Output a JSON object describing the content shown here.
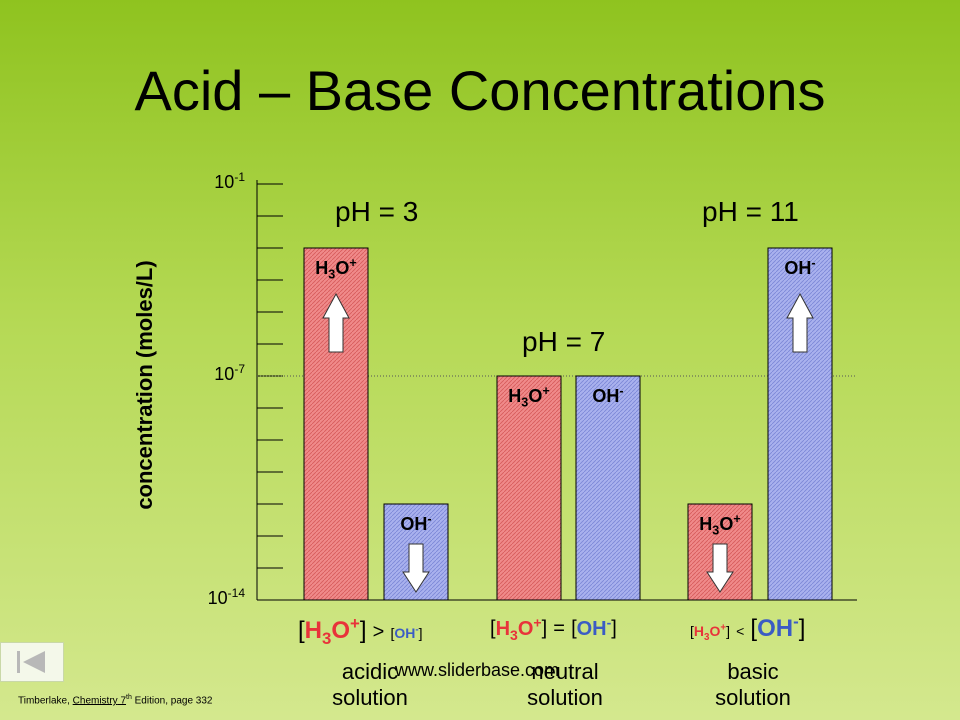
{
  "title": "Acid – Base Concentrations",
  "watermark": "www.sliderbase.com",
  "citation": {
    "prefix": "Timberlake, ",
    "book": "Chemistry",
    "edition": " 7",
    "sup": "th",
    "suffix": " Edition, page 332"
  },
  "chart_data": {
    "type": "bar",
    "ylabel": "concentration (moles/L)",
    "y_ticks": [
      {
        "base": "10",
        "exp": "-1"
      },
      {
        "base": "10",
        "exp": "-7"
      },
      {
        "base": "10",
        "exp": "-14"
      }
    ],
    "ylim": [
      -14,
      -1
    ],
    "y_scale": "log10",
    "categories": [
      {
        "ph": "pH = 3",
        "name_line1": "acidic",
        "name_line2": "solution",
        "eq": {
          "left": "[H3O+]",
          "op": ">",
          "right": "[OH-]",
          "emphasis": "left"
        }
      },
      {
        "ph": "pH = 7",
        "name_line1": "neutral",
        "name_line2": "solution",
        "eq": {
          "left": "[H3O+]",
          "op": "=",
          "right": "[OH-]",
          "emphasis": "none"
        }
      },
      {
        "ph": "pH = 11",
        "name_line1": "basic",
        "name_line2": "solution",
        "eq": {
          "left": "[H3O+]",
          "op": "<",
          "right": "[OH-]",
          "emphasis": "right"
        }
      }
    ],
    "series": [
      {
        "label": "H3O+",
        "color": "#f08a8a",
        "values": [
          -3,
          -7,
          -11
        ],
        "arrows": [
          "up",
          "none",
          "down"
        ]
      },
      {
        "label": "OH-",
        "color": "#9fa8e8",
        "values": [
          -11,
          -7,
          -3
        ],
        "arrows": [
          "down",
          "none",
          "up"
        ]
      }
    ]
  }
}
